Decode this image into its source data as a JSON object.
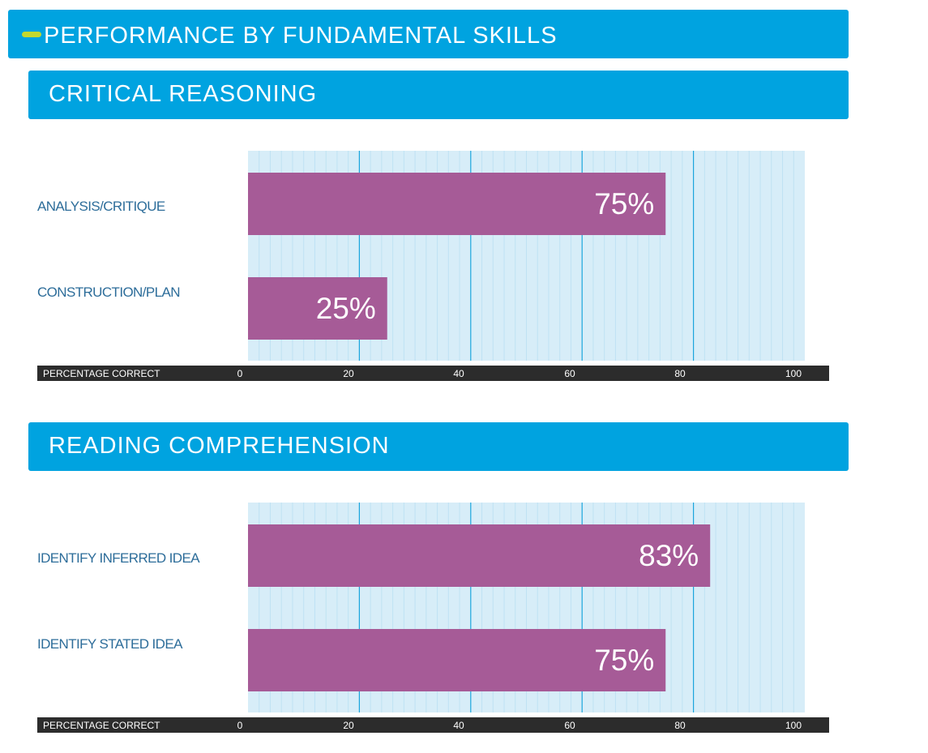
{
  "page": {
    "title": "PERFORMANCE BY FUNDAMENTAL SKILLS"
  },
  "colors": {
    "header_blue": "#00a3e0",
    "accent": "#c4d82e",
    "bar": "#a65b97",
    "plot_bg": "#d7edf8",
    "grid_major": "#1ba5dd",
    "axis_strip": "#2c2c2c",
    "category_text": "#2d6d9a"
  },
  "chart_data": [
    {
      "type": "bar",
      "orientation": "horizontal",
      "title": "CRITICAL REASONING",
      "categories": [
        "ANALYSIS/CRITIQUE",
        "CONSTRUCTION/PLAN"
      ],
      "values": [
        75,
        25
      ],
      "value_labels": [
        "75%",
        "25%"
      ],
      "xlabel": "PERCENTAGE CORRECT",
      "xlim": [
        0,
        100
      ],
      "xticks": [
        0,
        20,
        40,
        60,
        80,
        100
      ],
      "grid": true
    },
    {
      "type": "bar",
      "orientation": "horizontal",
      "title": "READING COMPREHENSION",
      "categories": [
        "IDENTIFY INFERRED IDEA",
        "IDENTIFY STATED IDEA"
      ],
      "values": [
        83,
        75
      ],
      "value_labels": [
        "83%",
        "75%"
      ],
      "xlabel": "PERCENTAGE CORRECT",
      "xlim": [
        0,
        100
      ],
      "xticks": [
        0,
        20,
        40,
        60,
        80,
        100
      ],
      "grid": true
    }
  ]
}
